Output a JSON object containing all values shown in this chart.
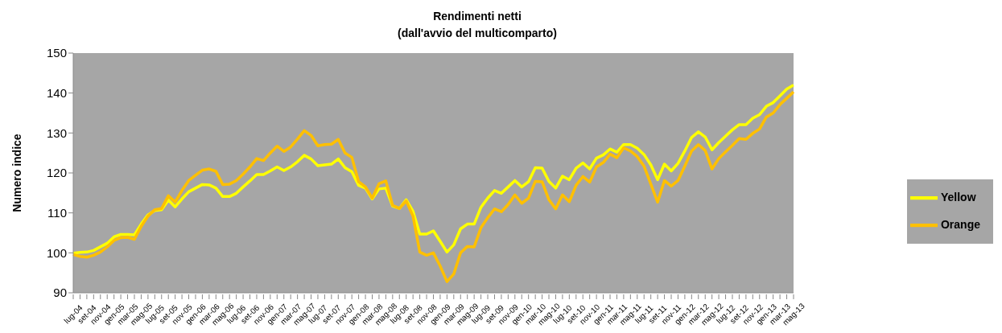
{
  "chart_data": {
    "type": "line",
    "title": "Rendimenti netti",
    "subtitle": "(dall'avvio del multicomparto)",
    "ylabel": "Numero indice",
    "categories": [
      "lug-04",
      null,
      "set-04",
      null,
      "nov-04",
      null,
      "gen-05",
      null,
      "mar-05",
      null,
      "mag-05",
      null,
      "lug-05",
      null,
      "set-05",
      null,
      "nov-05",
      null,
      "gen-06",
      null,
      "mar-06",
      null,
      "mag-06",
      null,
      "lug-06",
      null,
      "set-06",
      null,
      "nov-06",
      null,
      "gen-07",
      null,
      "mar-07",
      null,
      "mag-07",
      null,
      "lug-07",
      null,
      "set-07",
      null,
      "nov-07",
      null,
      "gen-08",
      null,
      "mar-08",
      null,
      "mag-08",
      null,
      "lug-08",
      null,
      "set-08",
      null,
      "nov-08",
      null,
      "gen-09",
      null,
      "mar-09",
      null,
      "mag-09",
      null,
      "lug-09",
      null,
      "set-09",
      null,
      "nov-09",
      null,
      "gen-10",
      null,
      "mar-10",
      null,
      "mag-10",
      null,
      "lug-10",
      null,
      "set-10",
      null,
      "nov-10",
      null,
      "gen-11",
      null,
      "mar-11",
      null,
      "mag-11",
      null,
      "lug-11",
      null,
      "set-11",
      null,
      "nov-11",
      null,
      "gen-12",
      null,
      "mar-12",
      null,
      "mag-12",
      null,
      "lug-12",
      null,
      "set-12",
      null,
      "nov-12",
      null,
      "gen-13",
      null,
      "mar-13",
      null,
      "mag-13"
    ],
    "series": [
      {
        "name": "Yellow",
        "color": "#ffff00",
        "values": [
          99.9,
          100.1,
          100.2,
          100.6,
          101.5,
          102.4,
          104.0,
          104.6,
          104.6,
          104.5,
          107.2,
          109.5,
          110.6,
          110.8,
          113.2,
          111.5,
          113.5,
          115.3,
          116.2,
          117.1,
          117.0,
          116.2,
          114.1,
          114.1,
          114.9,
          116.5,
          118.0,
          119.6,
          119.6,
          120.5,
          121.5,
          120.6,
          121.5,
          122.8,
          124.4,
          123.5,
          121.8,
          122.0,
          122.2,
          123.5,
          121.3,
          120.3,
          116.9,
          116.2,
          113.5,
          116.0,
          116.2,
          111.7,
          111.1,
          113.3,
          110.4,
          104.7,
          104.7,
          105.5,
          102.9,
          100.2,
          102.0,
          106.0,
          107.2,
          107.2,
          111.4,
          113.7,
          115.6,
          114.9,
          116.5,
          118.1,
          116.5,
          117.8,
          121.3,
          121.2,
          117.9,
          116.2,
          119.2,
          118.3,
          121.2,
          122.5,
          121.0,
          123.7,
          124.5,
          126.0,
          125.2,
          127.1,
          127.1,
          126.2,
          124.6,
          122.0,
          118.3,
          122.2,
          120.5,
          122.4,
          125.5,
          128.9,
          130.3,
          129.0,
          125.8,
          127.6,
          129.2,
          130.8,
          132.1,
          132.1,
          133.7,
          134.6,
          136.7,
          137.6,
          139.3,
          141.0,
          142.0
        ]
      },
      {
        "name": "Orange",
        "color": "#ffc000",
        "values": [
          99.6,
          99.1,
          98.9,
          99.4,
          100.2,
          101.5,
          103.1,
          103.8,
          103.9,
          103.4,
          106.6,
          109.2,
          110.8,
          111.1,
          114.3,
          112.7,
          115.6,
          118.1,
          119.4,
          120.7,
          121.0,
          120.4,
          117.1,
          117.2,
          118.1,
          119.7,
          121.5,
          123.6,
          123.1,
          125.0,
          126.7,
          125.4,
          126.5,
          128.5,
          130.6,
          129.4,
          126.8,
          127.1,
          127.2,
          128.4,
          125.0,
          123.9,
          117.8,
          116.5,
          113.7,
          117.3,
          118.0,
          111.9,
          111.1,
          113.0,
          109.2,
          100.2,
          99.4,
          100.0,
          96.7,
          92.8,
          94.7,
          100.0,
          101.6,
          101.5,
          106.3,
          108.8,
          111.0,
          110.3,
          112.1,
          114.5,
          112.4,
          113.7,
          117.9,
          117.8,
          113.3,
          111.0,
          114.5,
          112.8,
          116.9,
          119.1,
          117.7,
          121.5,
          122.6,
          124.7,
          123.8,
          126.3,
          125.5,
          124.1,
          121.7,
          117.2,
          112.7,
          118.1,
          116.7,
          118.1,
          121.7,
          125.5,
          127.1,
          125.6,
          121.0,
          123.6,
          125.3,
          126.9,
          128.6,
          128.4,
          129.9,
          131.0,
          134.0,
          135.0,
          137.1,
          138.7,
          140.3
        ]
      }
    ],
    "ylim": [
      90,
      150
    ],
    "yticks": [
      90,
      100,
      110,
      120,
      130,
      140,
      150
    ],
    "grid": false,
    "legend": "right",
    "line_style": "solid"
  }
}
